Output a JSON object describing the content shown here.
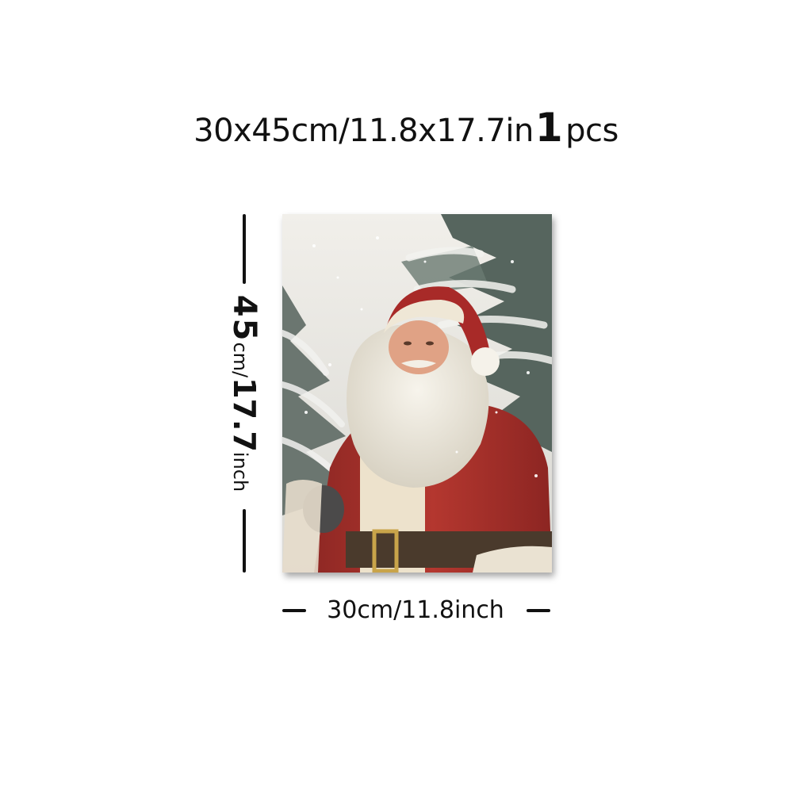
{
  "headline": {
    "size_text": "30x45cm/11.8x17.7in",
    "qty_number": "1",
    "qty_unit": "pcs"
  },
  "height_label": {
    "value": "45",
    "unit_a": "cm/",
    "value_b": "17.7",
    "unit_b": "inch"
  },
  "width_label": "30cm/11.8inch",
  "artwork": {
    "subject": "santa-claus-painting",
    "colors": {
      "sky": "#ece9e3",
      "tree": "#5d6b63",
      "snow": "#f4f4f2",
      "coat": "#a8302b",
      "beard": "#eeeae0",
      "belt": "#4a3a2c",
      "buckle": "#c9a44a"
    }
  }
}
